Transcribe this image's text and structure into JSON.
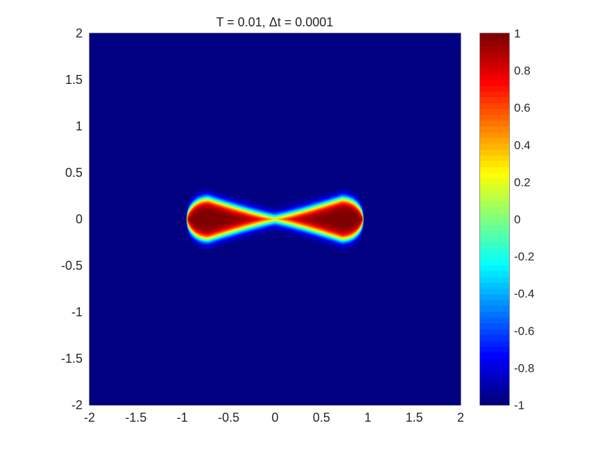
{
  "chart_data": {
    "type": "heatmap",
    "title": "T = 0.01,  Δt = 0.0001",
    "xlabel": "",
    "ylabel": "",
    "xlim": [
      -2,
      2
    ],
    "ylim": [
      -2,
      2
    ],
    "xticks": [
      -2,
      -1.5,
      -1,
      -0.5,
      0,
      0.5,
      1,
      1.5,
      2
    ],
    "yticks": [
      -2,
      -1.5,
      -1,
      -0.5,
      0,
      0.5,
      1,
      1.5,
      2
    ],
    "xtick_labels": [
      "-2",
      "-1.5",
      "-1",
      "-0.5",
      "0",
      "0.5",
      "1",
      "1.5",
      "2"
    ],
    "ytick_labels": [
      "-2",
      "-1.5",
      "-1",
      "-0.5",
      "0",
      "0.5",
      "1",
      "1.5",
      "2"
    ],
    "field": {
      "description_values": "phase field u in [-1, 1]; u = 1 inside a dumbbell-shaped region, -1 outside",
      "lobes": [
        {
          "center": [
            -0.72,
            0
          ],
          "radius_x": 0.2,
          "radius_y": 0.22
        },
        {
          "center": [
            0.72,
            0
          ],
          "radius_x": 0.2,
          "radius_y": 0.22
        }
      ],
      "x_extent": [
        -0.95,
        0.95
      ],
      "half_width_at_x0": 0.02,
      "interface_width": 0.06
    },
    "colorbar": {
      "colormap": "jet",
      "clim": [
        -1,
        1
      ],
      "ticks": [
        -1,
        -0.8,
        -0.6,
        -0.4,
        -0.2,
        0,
        0.2,
        0.4,
        0.6,
        0.8,
        1
      ],
      "tick_labels": [
        "-1",
        "-0.8",
        "-0.6",
        "-0.4",
        "-0.2",
        "0",
        "0.2",
        "0.4",
        "0.6",
        "0.8",
        "1"
      ]
    },
    "grid": false
  }
}
